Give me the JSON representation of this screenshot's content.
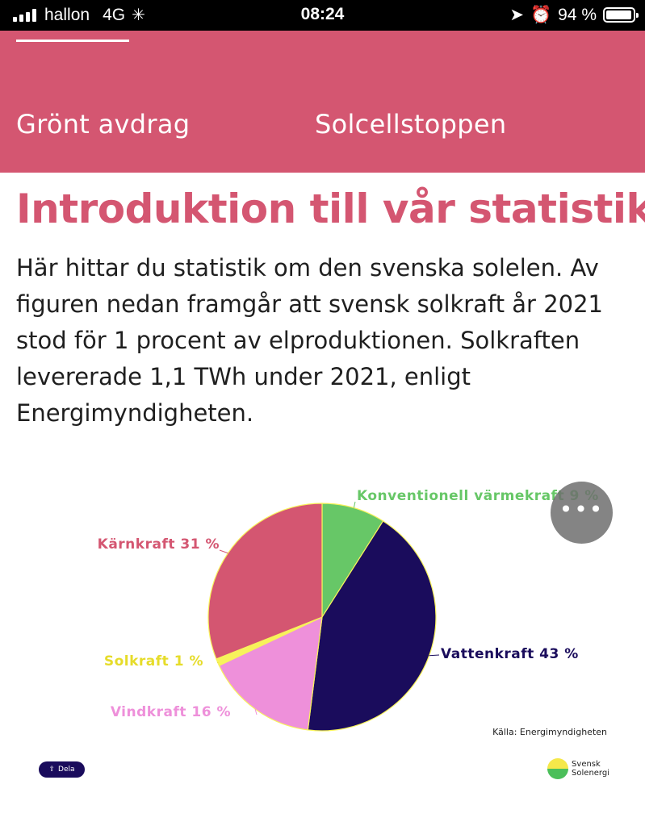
{
  "status_bar": {
    "carrier": "hallon",
    "network": "4G",
    "time": "08:24",
    "battery": "94 %"
  },
  "nav": {
    "tabs": [
      {
        "label": "Grönt avdrag"
      },
      {
        "label": "Solcellstoppen"
      }
    ]
  },
  "page": {
    "title": "Introduktion till vår statistik",
    "intro": "Här hittar du statistik om den svenska solelen. Av figuren nedan framgår att svensk solkraft år 2021 stod för 1 procent av elproduktionen. Solkraften levererade 1,1 TWh under 2021, enligt Energimyndigheten."
  },
  "chart_data": {
    "type": "pie",
    "slices": [
      {
        "label": "Konventionell värmekraft 9 %",
        "value": 9,
        "color": "#67c767"
      },
      {
        "label": "Vattenkraft 43 %",
        "value": 43,
        "color": "#1a0c5c"
      },
      {
        "label": "Vindkraft 16 %",
        "value": 16,
        "color": "#ee90da"
      },
      {
        "label": "Solkraft 1 %",
        "value": 1,
        "color": "#f7f25b"
      },
      {
        "label": "Kärnkraft 31 %",
        "value": 31,
        "color": "#d45671"
      }
    ],
    "source": "Källa: Energimyndigheten"
  },
  "footer": {
    "share_label": "Dela",
    "logo_line1": "Svensk",
    "logo_line2": "Solenergi"
  },
  "more_button": {
    "icon": "more-icon",
    "glyph": "•••"
  }
}
